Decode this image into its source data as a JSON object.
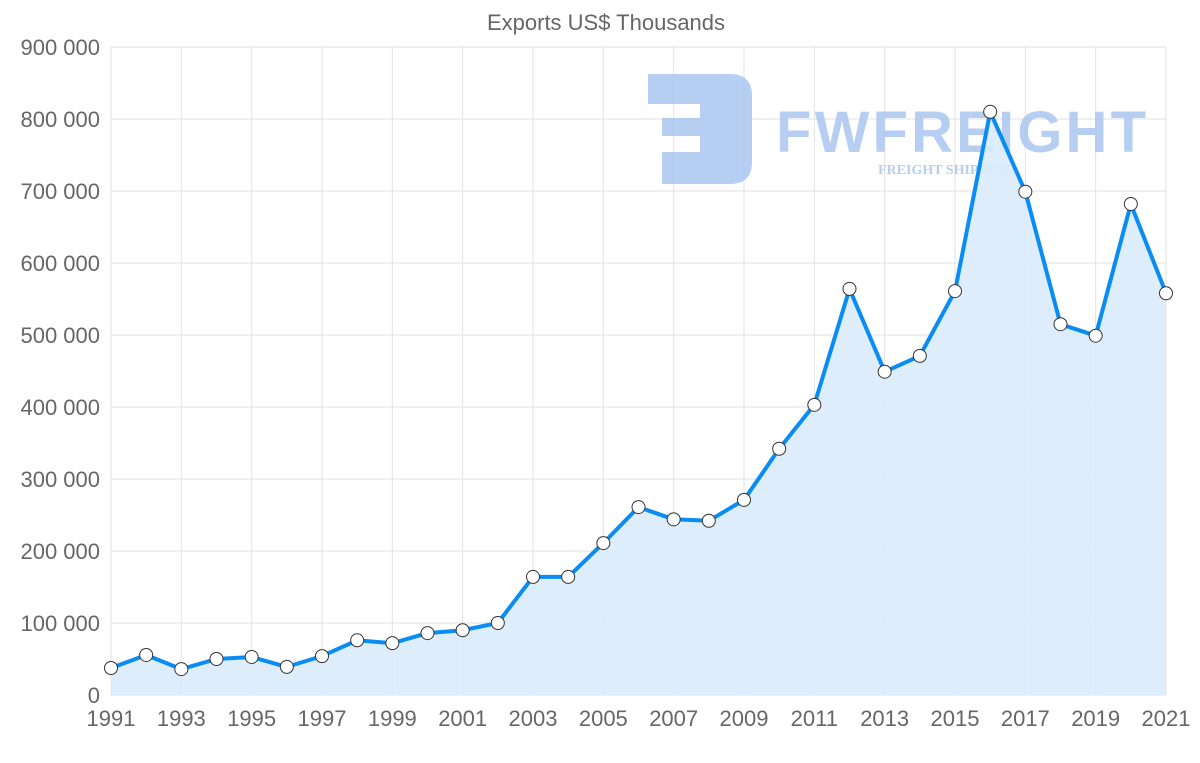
{
  "chart_data": {
    "type": "area",
    "title": "Exports US$ Thousands",
    "xlabel": "",
    "ylabel": "",
    "x": [
      1991,
      1992,
      1993,
      1994,
      1995,
      1996,
      1997,
      1998,
      1999,
      2000,
      2001,
      2002,
      2003,
      2004,
      2005,
      2006,
      2007,
      2008,
      2009,
      2010,
      2011,
      2012,
      2013,
      2014,
      2015,
      2016,
      2017,
      2018,
      2019,
      2020,
      2021
    ],
    "series": [
      {
        "name": "Exports US$ Thousands",
        "values": [
          37500,
          55600,
          36000,
          50000,
          52800,
          39000,
          54000,
          76000,
          72000,
          86000,
          90000,
          100000,
          164000,
          164000,
          211000,
          261000,
          244000,
          242000,
          271000,
          342000,
          403000,
          564000,
          449000,
          471000,
          561000,
          810000,
          699000,
          515000,
          499000,
          682000,
          558000
        ]
      }
    ],
    "ylim": [
      0,
      900000
    ],
    "xlim": [
      1991,
      2021
    ],
    "y_ticks": [
      "0",
      "100 000",
      "200 000",
      "300 000",
      "400 000",
      "500 000",
      "600 000",
      "700 000",
      "800 000",
      "900 000"
    ],
    "x_ticks": [
      "1991",
      "1993",
      "1995",
      "1997",
      "1999",
      "2001",
      "2003",
      "2005",
      "2007",
      "2009",
      "2011",
      "2013",
      "2015",
      "2017",
      "2019",
      "2021"
    ],
    "grid": true,
    "colors": {
      "line": "#0a8cf5",
      "fill": "#d9ebfc",
      "watermark": "#a9c6f0"
    }
  },
  "watermark": {
    "brand": "FWFREIGHT",
    "tagline": "FREIGHT SHIPPING"
  }
}
